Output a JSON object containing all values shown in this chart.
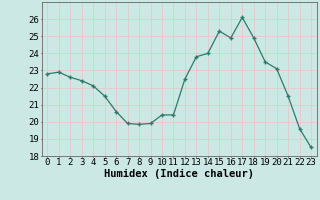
{
  "x": [
    0,
    1,
    2,
    3,
    4,
    5,
    6,
    7,
    8,
    9,
    10,
    11,
    12,
    13,
    14,
    15,
    16,
    17,
    18,
    19,
    20,
    21,
    22,
    23
  ],
  "y": [
    22.8,
    22.9,
    22.6,
    22.4,
    22.1,
    21.5,
    20.6,
    19.9,
    19.85,
    19.9,
    20.4,
    20.4,
    22.5,
    23.8,
    24.0,
    25.3,
    24.9,
    26.1,
    24.9,
    23.5,
    23.1,
    21.5,
    19.6,
    18.5
  ],
  "line_color": "#2d7a6a",
  "bg_color": "#cce8e5",
  "grid_color": "#b8d8d5",
  "xlabel": "Humidex (Indice chaleur)",
  "ylim": [
    18,
    27
  ],
  "xlim": [
    -0.5,
    23.5
  ],
  "yticks": [
    18,
    19,
    20,
    21,
    22,
    23,
    24,
    25,
    26
  ],
  "xticks": [
    0,
    1,
    2,
    3,
    4,
    5,
    6,
    7,
    8,
    9,
    10,
    11,
    12,
    13,
    14,
    15,
    16,
    17,
    18,
    19,
    20,
    21,
    22,
    23
  ],
  "tick_fontsize": 6.5,
  "xlabel_fontsize": 7.5
}
